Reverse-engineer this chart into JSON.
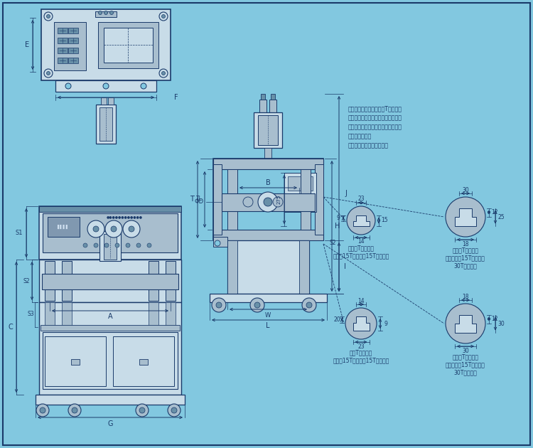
{
  "bg_color": "#82c8e0",
  "line_color": "#1a3a6a",
  "fill_color_light": "#c8dce8",
  "fill_color_mid": "#a8bece",
  "fill_color_dark": "#6890a8",
  "note_lines": [
    "注：上模固定方式可选择T型槽固定",
    "或者在移动板上面钻孔使用牙孔固定",
    "（牙孔固定时需要结合用户模具尺寸",
    "孔位来开孔）。",
    "具体情况视实际需要而定："
  ],
  "slot_labels_tl": [
    "移动板T型槽尺寸",
    "（适用15T以下（含15T）机型）"
  ],
  "slot_labels_tr": [
    "移动板T型槽尺寸",
    "（适用大于15T小于等于",
    "30T的机型）"
  ],
  "slot_labels_bl": [
    "底板T型槽尺寸",
    "（适用15T以下（含15T）机型）"
  ],
  "slot_labels_br": [
    "移动板T型槽尺寸",
    "（适用大于15T小于等于",
    "30T的机型）"
  ]
}
